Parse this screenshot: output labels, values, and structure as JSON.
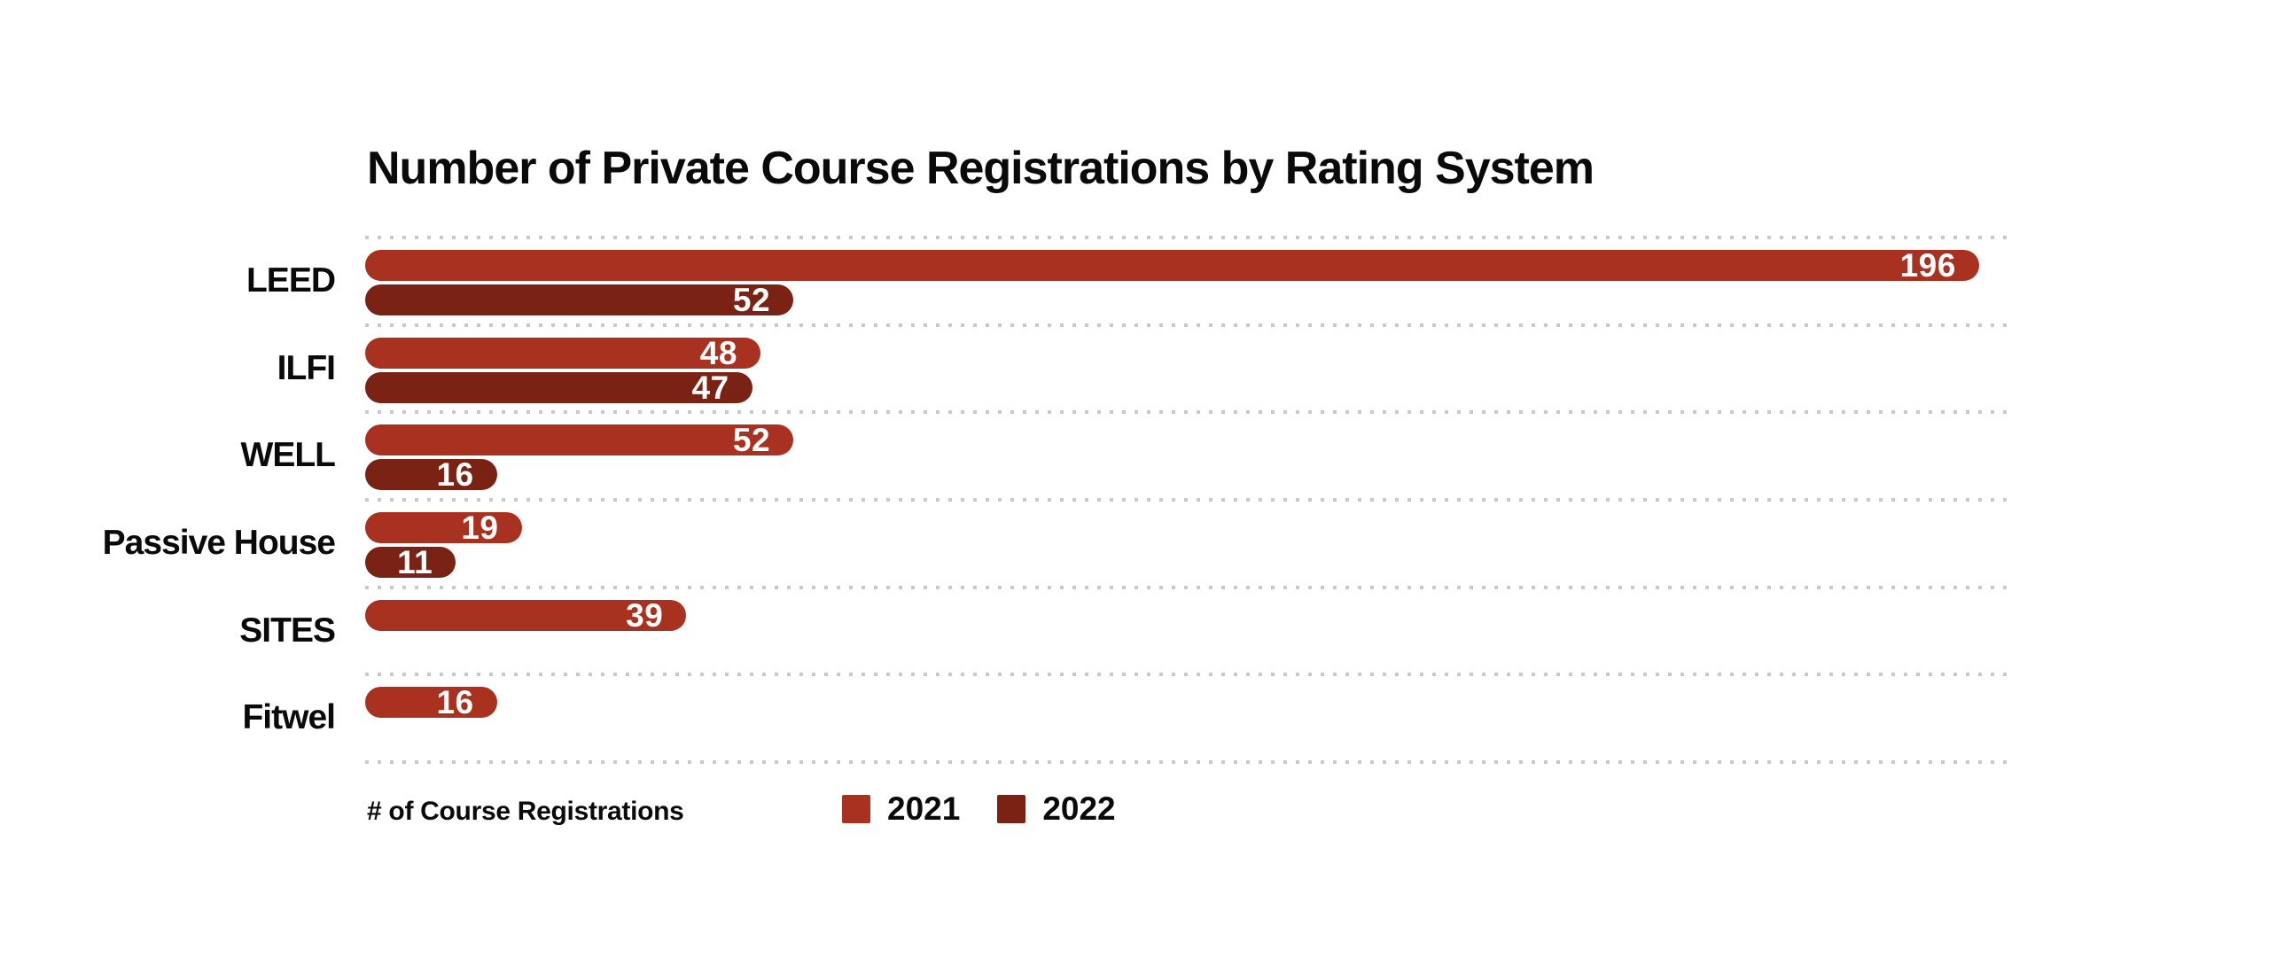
{
  "page": {
    "background_color": "#ffffff",
    "text_color": "#0a0a0a",
    "gridline_color": "#c9c9c9",
    "value_label_color": "#ffffff"
  },
  "chart_data": {
    "type": "bar",
    "orientation": "horizontal",
    "title": "Number of Private Course Registrations by Rating System",
    "xlabel": "# of Course Registrations",
    "ylabel": "",
    "xlim": [
      0,
      200
    ],
    "grid": "dotted horizontal separators between categories, no axis ticks or tick labels shown",
    "legend_position": "bottom",
    "bar_corner_style": "fully-rounded",
    "value_labels": "white, bold, inside right end of each bar",
    "categories": [
      "LEED",
      "ILFI",
      "WELL",
      "Passive House",
      "SITES",
      "Fitwel"
    ],
    "series": [
      {
        "name": "2021",
        "color": "#A93120",
        "values": [
          196,
          48,
          52,
          19,
          39,
          16
        ]
      },
      {
        "name": "2022",
        "color": "#7A2213",
        "values": [
          52,
          47,
          16,
          11,
          null,
          null
        ]
      }
    ]
  },
  "legend": {
    "items": [
      {
        "label": "2021",
        "color": "#A93120"
      },
      {
        "label": "2022",
        "color": "#7A2213"
      }
    ]
  }
}
